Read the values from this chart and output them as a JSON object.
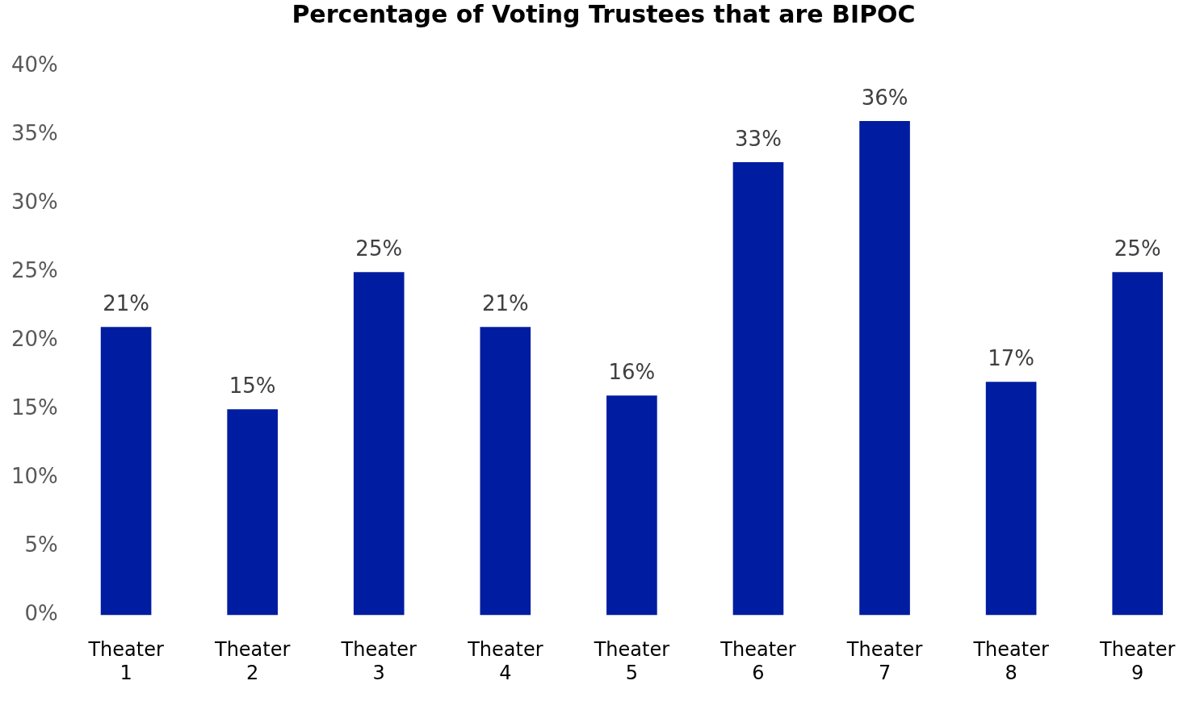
{
  "chart_data": {
    "type": "bar",
    "title": "Percentage of Voting Trustees that are BIPOC",
    "categories": [
      "Theater 1",
      "Theater 2",
      "Theater 3",
      "Theater 4",
      "Theater 5",
      "Theater 6",
      "Theater 7",
      "Theater 8",
      "Theater 9"
    ],
    "values": [
      21,
      15,
      25,
      21,
      16,
      33,
      36,
      17,
      25
    ],
    "value_labels": [
      "21%",
      "15%",
      "25%",
      "21%",
      "16%",
      "33%",
      "36%",
      "17%",
      "25%"
    ],
    "color": "#001ca0",
    "ylim": [
      0,
      40
    ],
    "yticks": [
      {
        "value": 0,
        "label": "0%"
      },
      {
        "value": 5,
        "label": "5%"
      },
      {
        "value": 10,
        "label": "10%"
      },
      {
        "value": 15,
        "label": "15%"
      },
      {
        "value": 20,
        "label": "20%"
      },
      {
        "value": 25,
        "label": "25%"
      },
      {
        "value": 30,
        "label": "30%"
      },
      {
        "value": 35,
        "label": "35%"
      },
      {
        "value": 40,
        "label": "40%"
      }
    ],
    "grid": false
  }
}
